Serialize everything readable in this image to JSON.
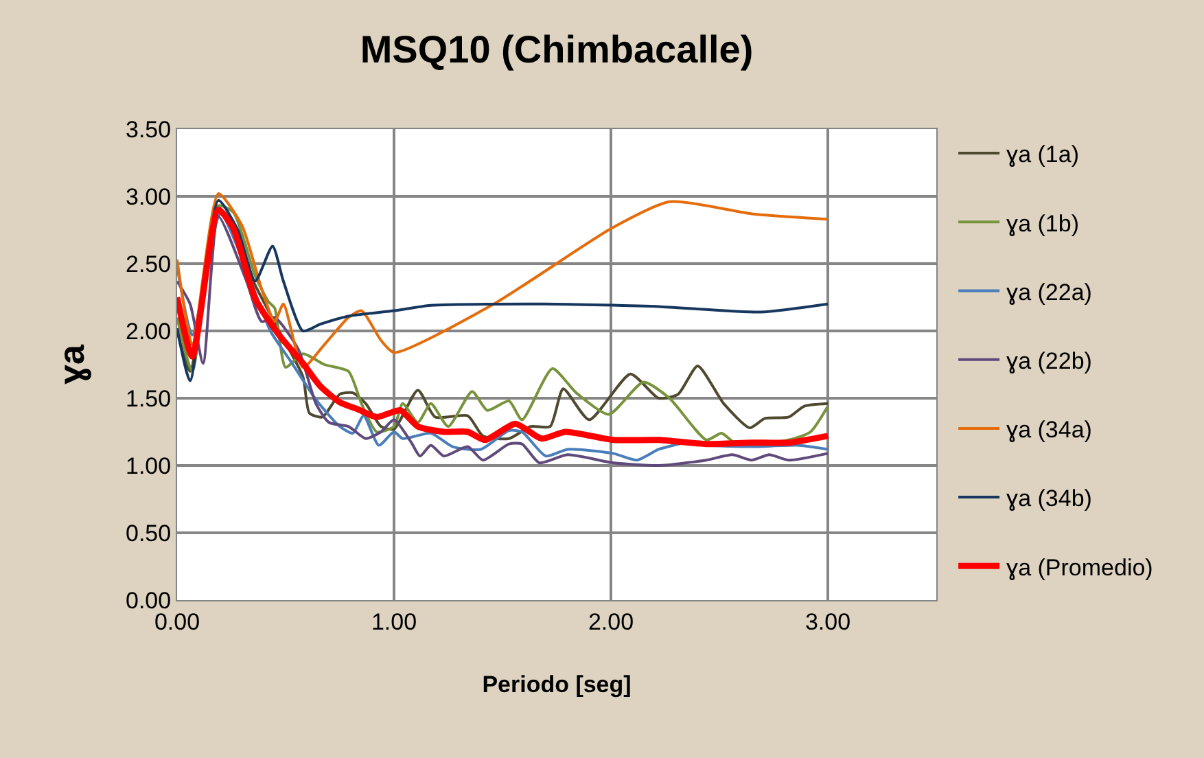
{
  "chart_data": {
    "type": "line",
    "title": "MSQ10 (Chimbacalle)",
    "xlabel": "Periodo [seg]",
    "ylabel": "ɣa",
    "xlim": [
      0,
      3.5
    ],
    "xticks": [
      {
        "value": 0,
        "label": "0.00"
      },
      {
        "value": 1,
        "label": "1.00"
      },
      {
        "value": 2,
        "label": "2.00"
      },
      {
        "value": 3,
        "label": "3.00"
      }
    ],
    "ylim": [
      0,
      3.5
    ],
    "yticks": [
      {
        "value": 0,
        "label": "0.00"
      },
      {
        "value": 0.5,
        "label": "0.50"
      },
      {
        "value": 1,
        "label": "1.00"
      },
      {
        "value": 1.5,
        "label": "1.50"
      },
      {
        "value": 2,
        "label": "2.00"
      },
      {
        "value": 2.5,
        "label": "2.50"
      },
      {
        "value": 3,
        "label": "3.00"
      },
      {
        "value": 3.5,
        "label": "3.50"
      }
    ],
    "grid": true,
    "legend": "right",
    "marker": "none",
    "line_style": "solid",
    "series": [
      {
        "name": "ɣa (1a)",
        "color": "#4f4a2f",
        "x": [
          0,
          0.06,
          0.19,
          0.36,
          0.47,
          0.58,
          0.61,
          0.67,
          0.75,
          0.81,
          0.87,
          0.94,
          1.0,
          1.11,
          1.19,
          1.34,
          1.41,
          1.53,
          1.63,
          1.72,
          1.78,
          1.9,
          2.09,
          2.22,
          2.31,
          2.4,
          2.52,
          2.64,
          2.71,
          2.82,
          2.89,
          3.0
        ],
        "values": [
          2.0,
          1.7,
          2.92,
          2.34,
          2.0,
          1.66,
          1.39,
          1.36,
          1.53,
          1.54,
          1.46,
          1.29,
          1.27,
          1.56,
          1.36,
          1.37,
          1.22,
          1.2,
          1.29,
          1.29,
          1.57,
          1.34,
          1.68,
          1.5,
          1.53,
          1.74,
          1.46,
          1.28,
          1.35,
          1.36,
          1.44,
          1.46
        ]
      },
      {
        "name": "ɣa (1b)",
        "color": "#77933c",
        "x": [
          0,
          0.07,
          0.19,
          0.26,
          0.36,
          0.42,
          0.45,
          0.5,
          0.58,
          0.68,
          0.79,
          0.85,
          0.92,
          1.0,
          1.04,
          1.11,
          1.17,
          1.25,
          1.36,
          1.43,
          1.53,
          1.59,
          1.73,
          1.84,
          1.99,
          2.15,
          2.27,
          2.44,
          2.51,
          2.58,
          2.82,
          2.92,
          3.0
        ],
        "values": [
          2.1,
          1.7,
          2.93,
          2.88,
          2.41,
          2.22,
          2.17,
          1.73,
          1.83,
          1.75,
          1.7,
          1.46,
          1.25,
          1.29,
          1.46,
          1.32,
          1.46,
          1.29,
          1.55,
          1.41,
          1.48,
          1.34,
          1.72,
          1.54,
          1.38,
          1.62,
          1.5,
          1.19,
          1.24,
          1.16,
          1.19,
          1.25,
          1.44
        ]
      },
      {
        "name": "ɣa (22a)",
        "color": "#4a7ebb",
        "x": [
          0,
          0.07,
          0.2,
          0.34,
          0.43,
          0.53,
          0.64,
          0.75,
          0.81,
          0.86,
          0.93,
          1.0,
          1.04,
          1.17,
          1.27,
          1.4,
          1.53,
          1.59,
          1.7,
          1.8,
          2.01,
          2.12,
          2.22,
          2.35,
          2.44,
          2.65,
          2.86,
          3.0
        ],
        "values": [
          2.48,
          1.97,
          2.87,
          2.37,
          2.0,
          1.76,
          1.49,
          1.29,
          1.24,
          1.37,
          1.15,
          1.25,
          1.2,
          1.24,
          1.14,
          1.12,
          1.26,
          1.25,
          1.07,
          1.12,
          1.09,
          1.04,
          1.12,
          1.17,
          1.15,
          1.14,
          1.15,
          1.12
        ]
      },
      {
        "name": "ɣa (22b)",
        "color": "#604a7b",
        "x": [
          0,
          0.06,
          0.12,
          0.19,
          0.32,
          0.39,
          0.45,
          0.56,
          0.64,
          0.7,
          0.79,
          0.87,
          0.94,
          1.0,
          1.08,
          1.12,
          1.17,
          1.23,
          1.34,
          1.41,
          1.53,
          1.59,
          1.67,
          1.8,
          2.01,
          2.22,
          2.44,
          2.56,
          2.65,
          2.73,
          2.82,
          3.0
        ],
        "values": [
          2.37,
          2.2,
          1.76,
          2.85,
          2.37,
          2.07,
          2.1,
          1.86,
          1.46,
          1.32,
          1.29,
          1.2,
          1.25,
          1.34,
          1.17,
          1.07,
          1.15,
          1.07,
          1.14,
          1.04,
          1.16,
          1.16,
          1.02,
          1.08,
          1.02,
          1.0,
          1.04,
          1.08,
          1.04,
          1.08,
          1.04,
          1.09
        ]
      },
      {
        "name": "ɣa (34a)",
        "color": "#e46c0a",
        "x": [
          0,
          0.07,
          0.19,
          0.3,
          0.39,
          0.45,
          0.49,
          0.58,
          0.68,
          0.79,
          0.85,
          0.94,
          1.0,
          1.46,
          2.0,
          2.27,
          2.65,
          3.0
        ],
        "values": [
          2.53,
          1.9,
          3.02,
          2.78,
          2.31,
          2.07,
          2.2,
          1.73,
          1.9,
          2.1,
          2.15,
          1.93,
          1.84,
          2.2,
          2.76,
          2.96,
          2.87,
          2.83
        ]
      },
      {
        "name": "ɣa (34b)",
        "color": "#17375e",
        "x": [
          0,
          0.06,
          0.19,
          0.28,
          0.36,
          0.44,
          0.49,
          0.58,
          0.66,
          0.79,
          1.0,
          1.17,
          1.7,
          2.23,
          2.69,
          3.0
        ],
        "values": [
          2.02,
          1.63,
          2.97,
          2.75,
          2.37,
          2.63,
          2.37,
          2.0,
          2.05,
          2.11,
          2.15,
          2.19,
          2.2,
          2.18,
          2.14,
          2.2
        ]
      },
      {
        "name": "ɣa (Promedio)",
        "color": "#ff0000",
        "x": [
          0,
          0.07,
          0.19,
          0.26,
          0.36,
          0.47,
          0.58,
          0.66,
          0.75,
          0.83,
          0.92,
          0.98,
          1.03,
          1.11,
          1.23,
          1.34,
          1.42,
          1.56,
          1.68,
          1.79,
          2.01,
          2.22,
          2.44,
          2.65,
          2.82,
          3.0
        ],
        "values": [
          2.25,
          1.81,
          2.9,
          2.76,
          2.24,
          1.97,
          1.76,
          1.59,
          1.47,
          1.42,
          1.36,
          1.39,
          1.41,
          1.29,
          1.25,
          1.25,
          1.19,
          1.31,
          1.2,
          1.25,
          1.19,
          1.19,
          1.16,
          1.17,
          1.17,
          1.22
        ]
      }
    ]
  }
}
